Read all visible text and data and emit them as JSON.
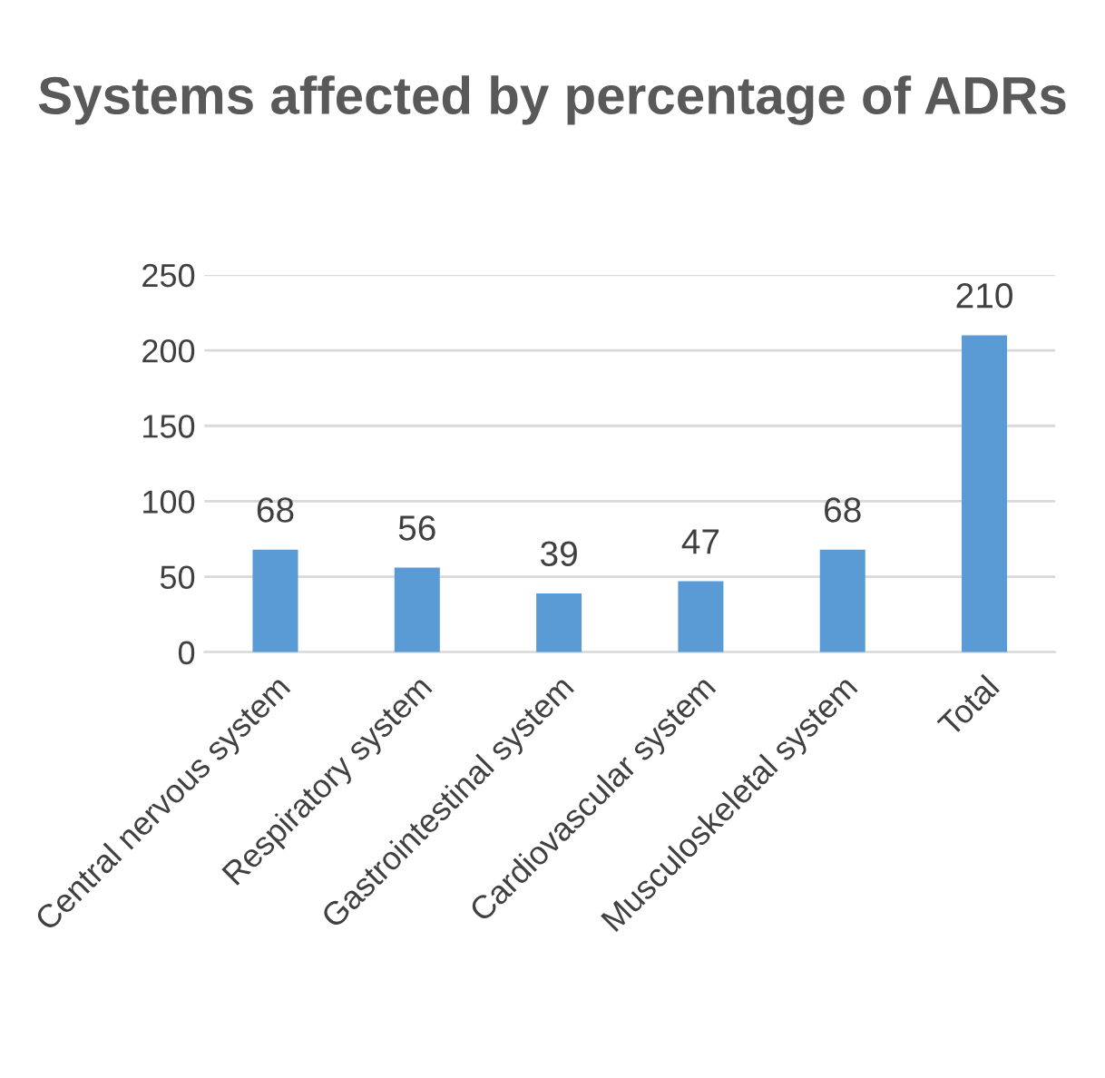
{
  "chart_data": {
    "type": "bar",
    "title": "Systems affected by percentage of ADRs",
    "categories": [
      "Central nervous system",
      "Respiratory system",
      "Gastrointestinal system",
      "Cardiovascular system",
      "Musculoskeletal system",
      "Total"
    ],
    "values": [
      68,
      56,
      39,
      47,
      68,
      210
    ],
    "color": "#5b9bd5",
    "ylim": [
      0,
      250
    ],
    "yticks": [
      0,
      50,
      100,
      150,
      200,
      250
    ],
    "grid": "y",
    "data_labels": true
  }
}
